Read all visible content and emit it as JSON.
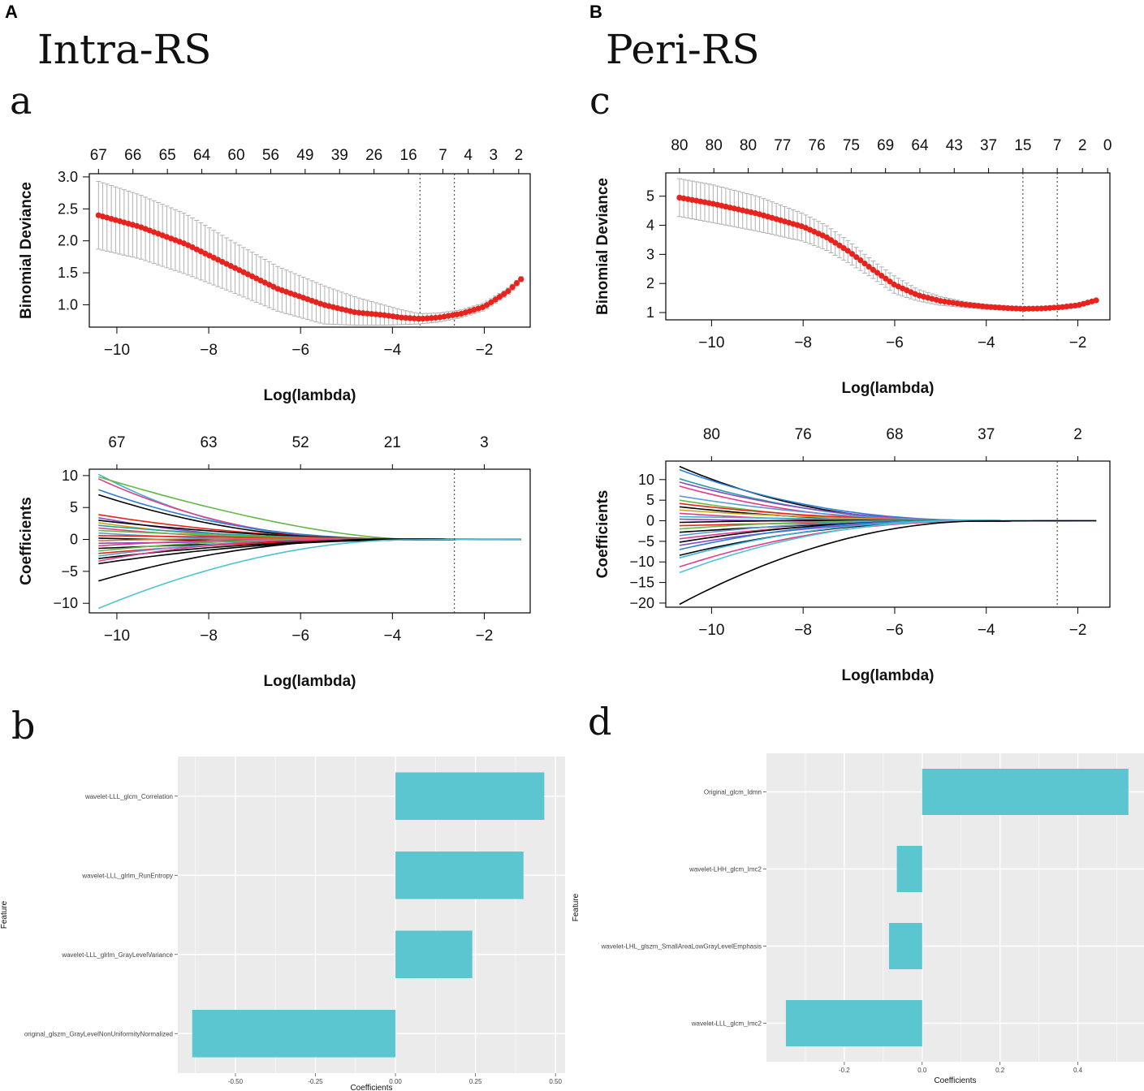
{
  "labels": {
    "panel_A": "A",
    "panel_B": "B",
    "title_A": "Intra-RS",
    "title_B": "Peri-RS",
    "sub_a": "a",
    "sub_b": "b",
    "sub_c": "c",
    "sub_d": "d"
  },
  "colors": {
    "cv_point": "#e8231d",
    "cv_error": "#b0b0b0",
    "bar_fill": "#5bc6d0",
    "gg_panel": "#ebebeb",
    "gg_grid": "#ffffff"
  },
  "chart_data": [
    {
      "id": "a_cv",
      "type": "line",
      "title": "",
      "xlabel": "Log(lambda)",
      "ylabel": "Binomial Deviance",
      "xlim": [
        -10.6,
        -1
      ],
      "ylim": [
        0.65,
        3.05
      ],
      "xticks": [
        -10,
        -8,
        -6,
        -4,
        -2
      ],
      "yticks": [
        1.0,
        1.5,
        2.0,
        2.5,
        3.0
      ],
      "top_axis_labels": [
        "67",
        "66",
        "65",
        "64",
        "60",
        "56",
        "49",
        "39",
        "26",
        "16",
        "7",
        "4",
        "3",
        "2"
      ],
      "top_axis_x": [
        -10.4,
        -9.65,
        -8.9,
        -8.15,
        -7.4,
        -6.65,
        -5.9,
        -5.15,
        -4.4,
        -3.65,
        -2.9,
        -2.35,
        -1.8,
        -1.25
      ],
      "vlines": [
        -3.4,
        -2.65
      ],
      "curve": {
        "x": [
          -10.4,
          -9.5,
          -8.5,
          -7.5,
          -6.5,
          -5.5,
          -4.8,
          -4.2,
          -3.8,
          -3.4,
          -3.0,
          -2.5,
          -2.0,
          -1.5,
          -1.2
        ],
        "y": [
          2.4,
          2.22,
          1.95,
          1.6,
          1.25,
          1.0,
          0.88,
          0.84,
          0.8,
          0.78,
          0.8,
          0.86,
          0.97,
          1.2,
          1.4
        ]
      },
      "err_upper": {
        "x": [
          -10.4,
          -9.5,
          -8.5,
          -7.5,
          -6.5,
          -5.5,
          -4.8,
          -4.2,
          -3.8,
          -3.4,
          -3.0,
          -2.5,
          -2.0,
          -1.5,
          -1.2
        ],
        "y": [
          2.93,
          2.72,
          2.42,
          2.0,
          1.6,
          1.3,
          1.12,
          1.0,
          0.92,
          0.86,
          0.87,
          0.92,
          1.03,
          1.25,
          1.44
        ]
      },
      "err_lower": {
        "x": [
          -10.4,
          -9.5,
          -8.5,
          -7.5,
          -6.5,
          -5.5,
          -4.8,
          -4.2,
          -3.8,
          -3.4,
          -3.0,
          -2.5,
          -2.0,
          -1.5,
          -1.2
        ],
        "y": [
          1.87,
          1.72,
          1.48,
          1.2,
          0.9,
          0.7,
          0.68,
          0.68,
          0.69,
          0.7,
          0.73,
          0.8,
          0.91,
          1.15,
          1.36
        ]
      }
    },
    {
      "id": "a_path",
      "type": "line",
      "title": "",
      "xlabel": "Log(lambda)",
      "ylabel": "Coefficients",
      "xlim": [
        -10.6,
        -1
      ],
      "ylim": [
        -11.5,
        11
      ],
      "xticks": [
        -10,
        -8,
        -6,
        -4,
        -2
      ],
      "yticks": [
        -10,
        -5,
        0,
        5,
        10
      ],
      "top_axis_labels": [
        "67",
        "63",
        "52",
        "21",
        "3"
      ],
      "top_axis_x": [
        -10.0,
        -8.0,
        -6.0,
        -4.0,
        -2.0
      ],
      "vlines": [
        -2.65
      ],
      "x_start": -10.4,
      "x_end": -1.2,
      "start_values": [
        10.2,
        9.8,
        9.5,
        7.8,
        7.0,
        3.9,
        3.4,
        3.0,
        2.6,
        2.2,
        1.8,
        1.4,
        1.0,
        0.6,
        0.2,
        -0.2,
        -0.6,
        -1.0,
        -1.4,
        -1.8,
        -2.2,
        -2.6,
        -3.0,
        -3.4,
        -3.8,
        -6.5,
        -10.8
      ],
      "decay": [
        1.4,
        0.55,
        1.2,
        1.3,
        1.1,
        1.2,
        1.3,
        1.1,
        1.2,
        1.3,
        1.0,
        1.2,
        1.1,
        1.3,
        1.2,
        1.1,
        1.3,
        1.2,
        1.0,
        1.2,
        1.3,
        1.1,
        1.2,
        1.4,
        1.1,
        1.0,
        0.9
      ],
      "line_colors": [
        "#3cb4d6",
        "#64b845",
        "#e23c8a",
        "#2d7dd2",
        "#000000",
        "#e8231d",
        "#8d48c7",
        "#000000",
        "#d0a020",
        "#20a0a0",
        "#e23c8a",
        "#64b845",
        "#5c9bd6",
        "#e8231d",
        "#000000",
        "#d07a30",
        "#8d48c7",
        "#e23c8a",
        "#000000",
        "#64b845",
        "#e8231d",
        "#5c9bd6",
        "#000000",
        "#e23c8a",
        "#000000",
        "#000000",
        "#4fc3d4"
      ]
    },
    {
      "id": "c_cv",
      "type": "line",
      "title": "",
      "xlabel": "Log(lambda)",
      "ylabel": "Binomial Deviance",
      "xlim": [
        -11,
        -1.3
      ],
      "ylim": [
        0.75,
        5.8
      ],
      "xticks": [
        -10,
        -8,
        -6,
        -4,
        -2
      ],
      "yticks": [
        1,
        2,
        3,
        4,
        5
      ],
      "top_axis_labels": [
        "80",
        "80",
        "80",
        "77",
        "76",
        "75",
        "69",
        "64",
        "43",
        "37",
        "15",
        "7",
        "2",
        "0"
      ],
      "top_axis_x": [
        -10.7,
        -9.95,
        -9.2,
        -8.45,
        -7.7,
        -6.95,
        -6.2,
        -5.45,
        -4.7,
        -3.95,
        -3.2,
        -2.45,
        -1.9,
        -1.35
      ],
      "vlines": [
        -3.2,
        -2.45
      ],
      "curve": {
        "x": [
          -10.7,
          -10.0,
          -9.0,
          -8.0,
          -7.5,
          -7.0,
          -6.5,
          -6.0,
          -5.5,
          -5.0,
          -4.5,
          -4.0,
          -3.5,
          -3.2,
          -2.8,
          -2.4,
          -2.0,
          -1.6
        ],
        "y": [
          4.95,
          4.75,
          4.4,
          3.95,
          3.6,
          3.1,
          2.5,
          1.95,
          1.6,
          1.4,
          1.28,
          1.2,
          1.15,
          1.13,
          1.14,
          1.18,
          1.25,
          1.42
        ]
      },
      "err_upper": {
        "x": [
          -10.7,
          -10.0,
          -9.0,
          -8.0,
          -7.5,
          -7.0,
          -6.5,
          -6.0,
          -5.5,
          -5.0,
          -4.5,
          -4.0,
          -3.5,
          -3.2,
          -2.8,
          -2.4,
          -2.0,
          -1.6
        ],
        "y": [
          5.6,
          5.4,
          5.0,
          4.4,
          4.0,
          3.45,
          2.8,
          2.25,
          1.8,
          1.55,
          1.38,
          1.28,
          1.22,
          1.18,
          1.18,
          1.21,
          1.28,
          1.44
        ]
      },
      "err_lower": {
        "x": [
          -10.7,
          -10.0,
          -9.0,
          -8.0,
          -7.5,
          -7.0,
          -6.5,
          -6.0,
          -5.5,
          -5.0,
          -4.5,
          -4.0,
          -3.5,
          -3.2,
          -2.8,
          -2.4,
          -2.0,
          -1.6
        ],
        "y": [
          4.3,
          4.1,
          3.8,
          3.45,
          3.15,
          2.7,
          2.2,
          1.65,
          1.4,
          1.25,
          1.18,
          1.12,
          1.08,
          1.08,
          1.1,
          1.15,
          1.22,
          1.4
        ]
      }
    },
    {
      "id": "c_path",
      "type": "line",
      "title": "",
      "xlabel": "Log(lambda)",
      "ylabel": "Coefficients",
      "xlim": [
        -11,
        -1.3
      ],
      "ylim": [
        -21,
        14.5
      ],
      "xticks": [
        -10,
        -8,
        -6,
        -4,
        -2
      ],
      "yticks": [
        -20,
        -15,
        -10,
        -5,
        0,
        5,
        10
      ],
      "top_axis_labels": [
        "80",
        "76",
        "68",
        "37",
        "2"
      ],
      "top_axis_x": [
        -10.0,
        -8.0,
        -6.0,
        -4.0,
        -2.0
      ],
      "vlines": [
        -2.45
      ],
      "x_start": -10.7,
      "x_end": -1.6,
      "start_values": [
        13.2,
        12.4,
        10.2,
        9.4,
        8.4,
        6.0,
        5.0,
        4.2,
        3.4,
        2.6,
        1.8,
        1.0,
        0.4,
        -0.4,
        -1.2,
        -2.0,
        -2.8,
        -3.6,
        -4.4,
        -5.2,
        -6.0,
        -7.0,
        -8.4,
        -9.0,
        -11.2,
        -12.6,
        -20.3
      ],
      "decay": [
        1.3,
        1.2,
        1.1,
        1.2,
        1.3,
        1.1,
        1.2,
        1.3,
        1.1,
        1.2,
        1.3,
        1.1,
        1.2,
        1.0,
        1.2,
        1.3,
        1.1,
        1.2,
        1.3,
        1.1,
        1.2,
        1.3,
        1.2,
        1.1,
        1.2,
        1.1,
        0.95
      ],
      "line_colors": [
        "#000000",
        "#2d7dd2",
        "#20a0a0",
        "#8d48c7",
        "#e23c8a",
        "#5c9bd6",
        "#64b845",
        "#e8231d",
        "#000000",
        "#d0a020",
        "#e23c8a",
        "#3cb4d6",
        "#8d48c7",
        "#000000",
        "#e8231d",
        "#64b845",
        "#000000",
        "#5c9bd6",
        "#e23c8a",
        "#000000",
        "#8d48c7",
        "#2d7dd2",
        "#000000",
        "#3cb4d6",
        "#e23c8a",
        "#4fc3d4",
        "#000000"
      ]
    },
    {
      "id": "b_bar",
      "type": "bar",
      "title": "",
      "xlabel": "Coefficients",
      "ylabel": "Feature",
      "xlim": [
        -0.68,
        0.53
      ],
      "xticks": [
        -0.5,
        -0.25,
        0.0,
        0.25,
        0.5
      ],
      "xtick_labels": [
        "-0.50",
        "-0.25",
        "0.00",
        "0.25",
        "0.50"
      ],
      "categories": [
        "wavelet-LLL_glcm_Correlation",
        "wavelet-LLL_glrlm_RunEntropy",
        "wavelet-LLL_glrlm_GrayLevelVariance",
        "original_glszm_GrayLevelNonUniformityNormalized"
      ],
      "values": [
        0.465,
        0.4,
        0.24,
        -0.635
      ]
    },
    {
      "id": "d_bar",
      "type": "bar",
      "title": "",
      "xlabel": "Coefficients",
      "ylabel": "Feature",
      "xlim": [
        -0.4,
        0.57
      ],
      "xticks": [
        -0.2,
        0.0,
        0.2,
        0.4
      ],
      "xtick_labels": [
        "-0.2",
        "0.0",
        "0.2",
        "0.4"
      ],
      "categories": [
        "Original_glcm_Idmn",
        "wavelet-LHH_glcm_Imc2",
        "wavelet-LHL_glszm_SmallAreaLowGrayLevelEmphasis",
        "wavelet-LLL_glcm_Imc2"
      ],
      "values": [
        0.53,
        -0.065,
        -0.085,
        -0.35
      ]
    }
  ]
}
